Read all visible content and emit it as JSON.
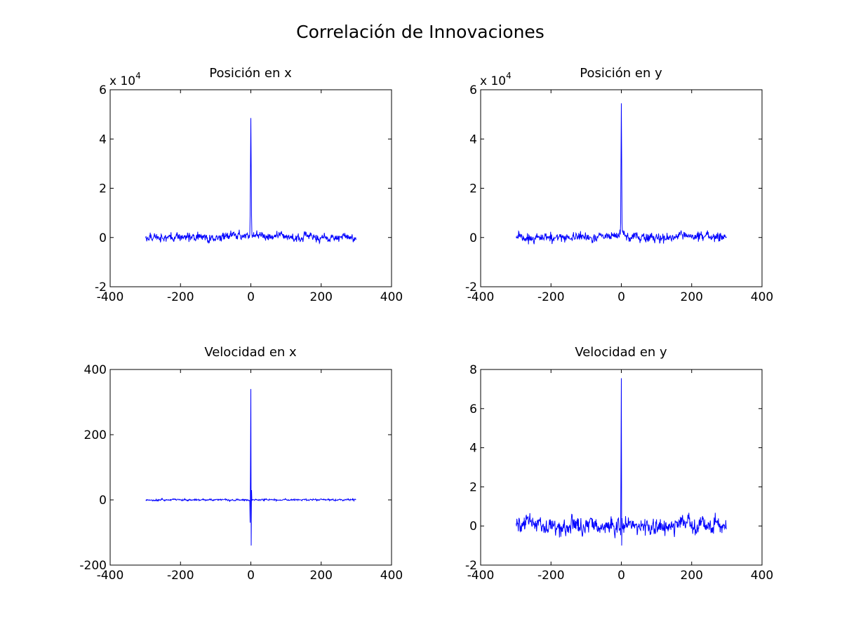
{
  "figure": {
    "title": "Correlación de Innovaciones",
    "line_color": "#0000ff"
  },
  "chart_data": [
    {
      "type": "line",
      "title": "Posición en x",
      "multiplier": "x 10",
      "multiplier_exp": "4",
      "xlim": [
        -400,
        400
      ],
      "ylim": [
        -2,
        6
      ],
      "xticks": [
        -400,
        -200,
        0,
        200,
        400
      ],
      "yticks": [
        -2,
        0,
        2,
        4,
        6
      ],
      "lag_range": [
        -299,
        299
      ],
      "noise": {
        "amp": 0.12,
        "env_width": 45,
        "env_height": 0.12,
        "lagged_amp": 0
      },
      "peaks": [
        {
          "x": 0,
          "y": 4.85
        },
        {
          "x": -1,
          "y": 2.9
        },
        {
          "x": 1,
          "y": 2.9
        },
        {
          "x": -2,
          "y": 0.9
        },
        {
          "x": 2,
          "y": 0.9
        }
      ]
    },
    {
      "type": "line",
      "title": "Posición en y",
      "multiplier": "x 10",
      "multiplier_exp": "4",
      "xlim": [
        -400,
        400
      ],
      "ylim": [
        -2,
        6
      ],
      "xticks": [
        -400,
        -200,
        0,
        200,
        400
      ],
      "yticks": [
        -2,
        0,
        2,
        4,
        6
      ],
      "lag_range": [
        -299,
        299
      ],
      "noise": {
        "amp": 0.13,
        "env_width": 25,
        "env_height": 0.1,
        "lagged_amp": 0
      },
      "peaks": [
        {
          "x": 0,
          "y": 5.45
        },
        {
          "x": -1,
          "y": 3.1
        },
        {
          "x": 1,
          "y": 3.1
        },
        {
          "x": -2,
          "y": 0.6
        },
        {
          "x": 2,
          "y": 0.6
        }
      ]
    },
    {
      "type": "line",
      "title": "Velocidad en x",
      "multiplier": "",
      "multiplier_exp": "",
      "xlim": [
        -400,
        400
      ],
      "ylim": [
        -200,
        400
      ],
      "xticks": [
        -400,
        -200,
        0,
        200,
        400
      ],
      "yticks": [
        -200,
        0,
        200,
        400
      ],
      "lag_range": [
        -299,
        299
      ],
      "noise": {
        "amp": 2,
        "env_width": 0,
        "env_height": 0,
        "lagged_amp": 0
      },
      "peaks": [
        {
          "x": 0,
          "y": 340
        },
        {
          "x": -1,
          "y": 100
        },
        {
          "x": 1,
          "y": -140
        },
        {
          "x": -2,
          "y": -70
        },
        {
          "x": 2,
          "y": 30
        }
      ]
    },
    {
      "type": "line",
      "title": "Velocidad en y",
      "multiplier": "",
      "multiplier_exp": "",
      "xlim": [
        -400,
        400
      ],
      "ylim": [
        -2,
        8
      ],
      "xticks": [
        -400,
        -200,
        0,
        200,
        400
      ],
      "yticks": [
        -2,
        0,
        2,
        4,
        6,
        8
      ],
      "lag_range": [
        -299,
        299
      ],
      "noise": {
        "amp": 0.3,
        "env_width": 0,
        "env_height": 0,
        "lagged_amp": 0
      },
      "peaks": [
        {
          "x": 0,
          "y": 7.55
        },
        {
          "x": -1,
          "y": 3.3
        },
        {
          "x": 1,
          "y": -1.0
        },
        {
          "x": 2,
          "y": 0.4
        }
      ]
    }
  ]
}
